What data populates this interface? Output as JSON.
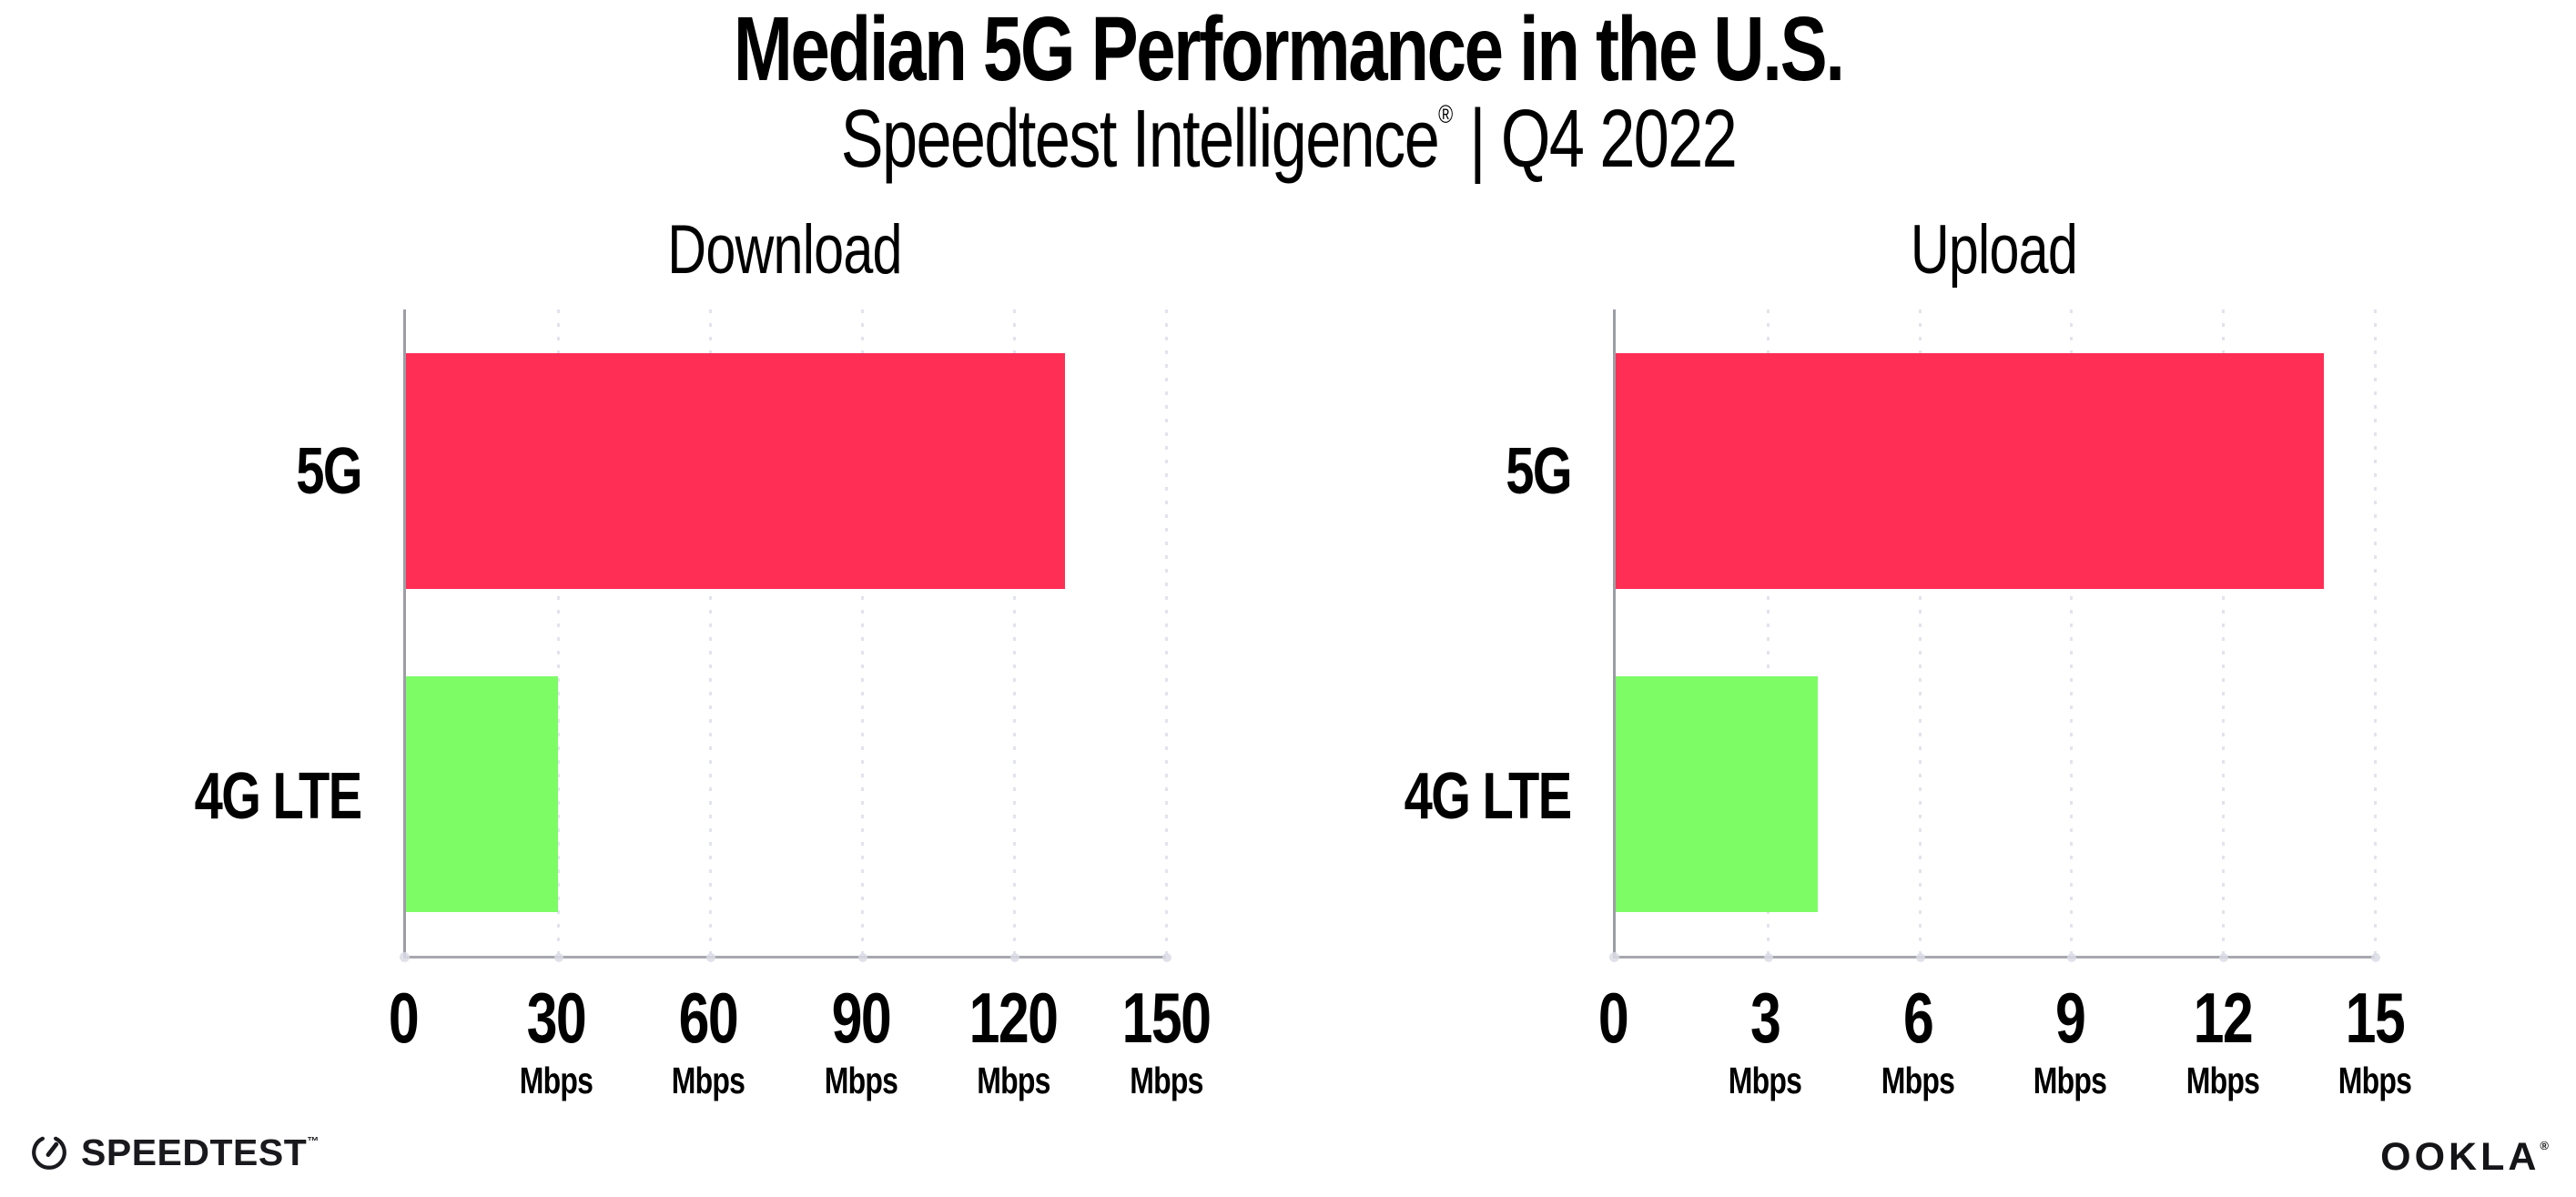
{
  "header": {
    "title": "Median 5G Performance in the U.S.",
    "subtitle_brand": "Speedtest Intelligence",
    "subtitle_reg": "®",
    "subtitle_rest": " | Q4 2022"
  },
  "chart_data": [
    {
      "type": "bar",
      "orientation": "horizontal",
      "title": "Download",
      "categories": [
        "5G",
        "4G LTE"
      ],
      "values": [
        130,
        30
      ],
      "unit": "Mbps",
      "xlim": [
        0,
        150
      ],
      "xticks": [
        0,
        30,
        60,
        90,
        120,
        150
      ],
      "tick_unit": "Mbps",
      "grid": "dotted vertical gridlines at each tick",
      "legend": "none",
      "colors": [
        "#FF2E55",
        "#7DFC66"
      ]
    },
    {
      "type": "bar",
      "orientation": "horizontal",
      "title": "Upload",
      "categories": [
        "5G",
        "4G LTE"
      ],
      "values": [
        14,
        4
      ],
      "unit": "Mbps",
      "xlim": [
        0,
        15
      ],
      "xticks": [
        0,
        3,
        6,
        9,
        12,
        15
      ],
      "tick_unit": "Mbps",
      "grid": "dotted vertical gridlines at each tick",
      "legend": "none",
      "colors": [
        "#FF2E55",
        "#7DFC66"
      ]
    }
  ],
  "footer": {
    "speedtest_label": "SPEEDTEST",
    "speedtest_tm": "™",
    "ookla_label": "OOKLA",
    "ookla_reg": "®"
  },
  "colors": {
    "bar_5g": "#FF2E55",
    "bar_4g_lte": "#7DFC66",
    "axis": "#9D9DA6",
    "gridline": "#E3E3ED",
    "text": "#000000",
    "background": "#FFFFFF"
  }
}
